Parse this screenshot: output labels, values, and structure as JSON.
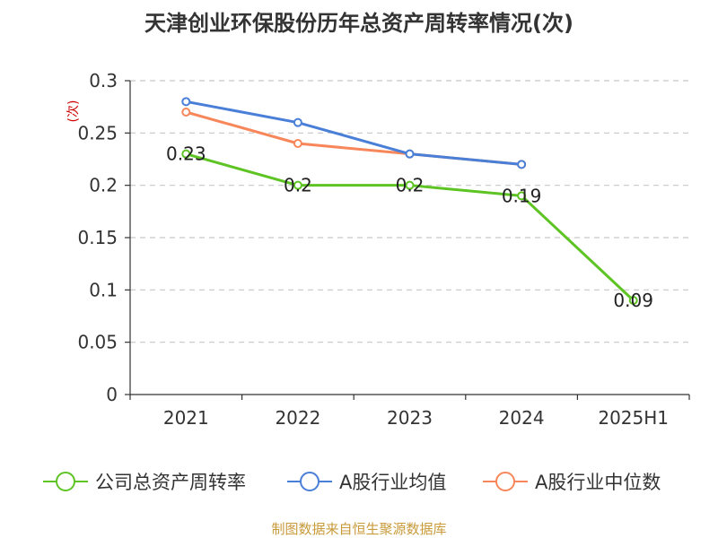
{
  "chart_data": {
    "type": "line",
    "title": "天津创业环保股份历年总资产周转率情况(次)",
    "ylabel": "(次)",
    "xlabel": "",
    "categories": [
      "2021",
      "2022",
      "2023",
      "2024",
      "2025H1"
    ],
    "ylim": [
      0,
      0.3
    ],
    "yticks": [
      "0",
      "0.05",
      "0.1",
      "0.15",
      "0.2",
      "0.25",
      "0.3"
    ],
    "grid": true,
    "legend_position": "bottom",
    "series": [
      {
        "name": "公司总资产周转率",
        "color": "#5ec424",
        "values": [
          0.23,
          0.2,
          0.2,
          0.19,
          0.09
        ],
        "labels": [
          "0.23",
          "0.2",
          "0.2",
          "0.19",
          "0.09"
        ]
      },
      {
        "name": "A股行业均值",
        "color": "#4a7fd8",
        "values": [
          0.28,
          0.26,
          0.23,
          0.22,
          null
        ]
      },
      {
        "name": "A股行业中位数",
        "color": "#f7875a",
        "values": [
          0.27,
          0.24,
          0.23,
          0.22,
          null
        ]
      }
    ],
    "source": "制图数据来自恒生聚源数据库"
  }
}
